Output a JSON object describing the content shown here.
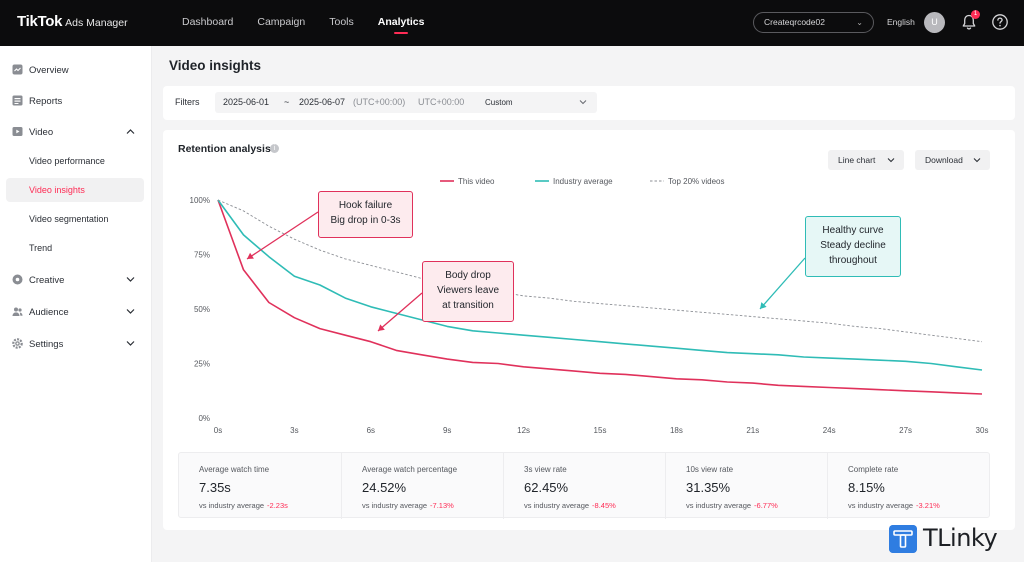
{
  "header": {
    "logo_main": "TikTok",
    "logo_sub": "Ads Manager",
    "nav": [
      "Dashboard",
      "Campaign",
      "Tools",
      "Analytics"
    ],
    "active_nav": "Analytics",
    "account": "Createqrcode02",
    "language": "English",
    "avatar_initial": "U",
    "notification_count": "1"
  },
  "sidebar": {
    "items": [
      {
        "label": "Overview",
        "icon": "overview-icon"
      },
      {
        "label": "Reports",
        "icon": "reports-icon"
      },
      {
        "label": "Video",
        "icon": "video-icon",
        "expanded": true
      },
      {
        "label": "Creative",
        "icon": "creative-icon"
      },
      {
        "label": "Audience",
        "icon": "audience-icon"
      },
      {
        "label": "Settings",
        "icon": "settings-icon"
      }
    ],
    "video_sub": [
      "Video performance",
      "Video insights",
      "Video segmentation",
      "Trend"
    ],
    "active_sub": "Video insights"
  },
  "page": {
    "title": "Video insights"
  },
  "filters": {
    "label": "Filters",
    "start_date": "2025-06-01",
    "separator": "~",
    "end_date": "2025-06-07",
    "tz_inline": "(UTC+00:00)",
    "tz": "UTC+00:00",
    "range": "Custom"
  },
  "retention": {
    "title": "Retention analysis",
    "chart_type_button": "Line chart",
    "download_button": "Download"
  },
  "callouts": {
    "hook": [
      "Hook failure",
      "Big drop in 0-3s"
    ],
    "body": [
      "Body drop",
      "Viewers leave",
      "at transition"
    ],
    "healthy": [
      "Healthy curve",
      "Steady decline",
      "throughout"
    ]
  },
  "chart_data": {
    "type": "line",
    "x": [
      0,
      1,
      2,
      3,
      4,
      5,
      6,
      7,
      8,
      9,
      10,
      11,
      12,
      13,
      14,
      15,
      16,
      17,
      18,
      19,
      20,
      21,
      22,
      23,
      24,
      25,
      26,
      27,
      28,
      29,
      30
    ],
    "xticks": [
      "0s",
      "3s",
      "6s",
      "9s",
      "12s",
      "15s",
      "18s",
      "21s",
      "24s",
      "27s",
      "30s"
    ],
    "yticks": [
      "0%",
      "25%",
      "50%",
      "75%",
      "100%"
    ],
    "ylim": [
      0,
      100
    ],
    "xlim": [
      0,
      30
    ],
    "legend_position": "top",
    "grid": false,
    "series": [
      {
        "name": "This video",
        "color": "#e0315b",
        "dash": false,
        "values": [
          100,
          68,
          53,
          46,
          41,
          38,
          35,
          31,
          29,
          27,
          25.5,
          25,
          23.5,
          22.5,
          21.5,
          20.5,
          20,
          19,
          18,
          17.5,
          16.5,
          16,
          15,
          14.5,
          14,
          13.5,
          13,
          12.5,
          12,
          11.5,
          11
        ]
      },
      {
        "name": "Industry average",
        "color": "#2fbcb6",
        "dash": false,
        "values": [
          100,
          84,
          74,
          65,
          61,
          55,
          51,
          48,
          45,
          42,
          40,
          39,
          38,
          37,
          36,
          35,
          34,
          33,
          32,
          31,
          30,
          29.5,
          29,
          28,
          27.5,
          27,
          26.5,
          26,
          25,
          23.5,
          22
        ]
      },
      {
        "name": "Top 20% videos",
        "color": "#8c8f95",
        "dash": true,
        "values": [
          100,
          95,
          88,
          82,
          77,
          73,
          70,
          67,
          64,
          62,
          60,
          58,
          56,
          55,
          53.5,
          52.5,
          51.5,
          50.5,
          49.5,
          48.5,
          47.5,
          46.5,
          45.5,
          44.5,
          43.5,
          42,
          41,
          39.5,
          38,
          36.5,
          35
        ]
      }
    ]
  },
  "metrics": [
    {
      "label": "Average watch time",
      "value": "7.35s",
      "comp": "vs industry average",
      "delta": "-2.23s"
    },
    {
      "label": "Average watch percentage",
      "value": "24.52%",
      "comp": "vs industry average",
      "delta": "-7.13%"
    },
    {
      "label": "3s view rate",
      "value": "62.45%",
      "comp": "vs industry average",
      "delta": "-8.45%"
    },
    {
      "label": "10s view rate",
      "value": "31.35%",
      "comp": "vs industry average",
      "delta": "-6.77%"
    },
    {
      "label": "Complete rate",
      "value": "8.15%",
      "comp": "vs industry average",
      "delta": "-3.21%"
    }
  ],
  "watermark": {
    "text": "TLinky"
  }
}
